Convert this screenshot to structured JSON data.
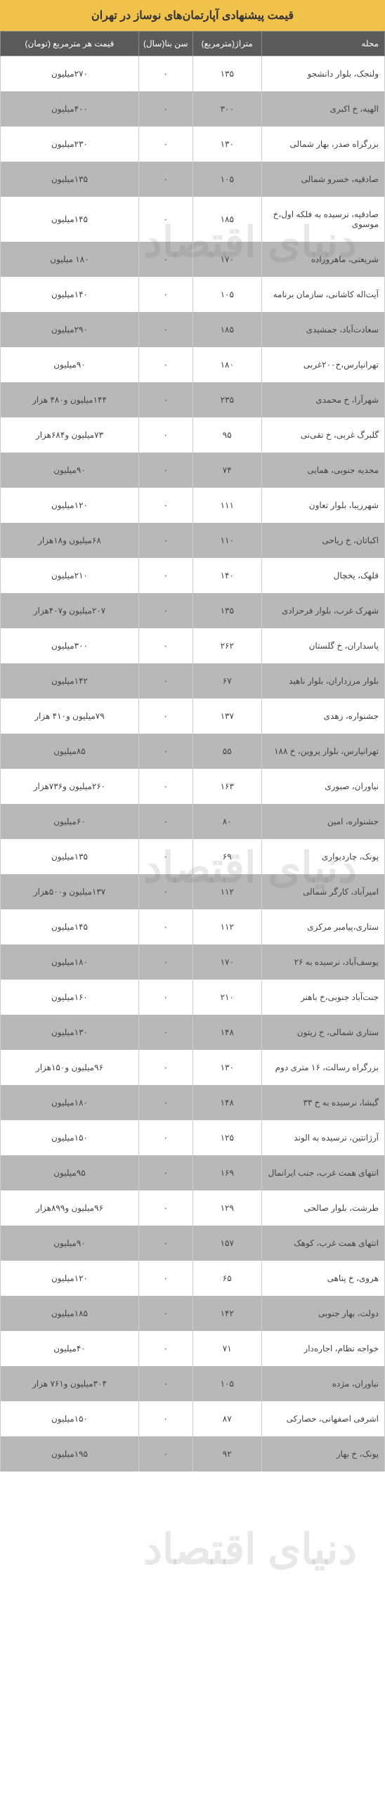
{
  "title": "قیمت پیشنهادی آپارتمان‌های نوساز در تهران",
  "watermark_text": "دنیای اقتصاد",
  "colors": {
    "title_bg": "#f0c14b",
    "header_bg": "#5a5a5a",
    "row_even_bg": "#b8b8b8",
    "row_odd_bg": "#ffffff"
  },
  "columns": [
    "محله",
    "متراژ(مترمربع)",
    "سن بنا(سال)",
    "قیمت هر مترمربع (تومان)"
  ],
  "rows": [
    [
      "ولنجک، بلوار دانشجو",
      "۱۳۵",
      "۰",
      "۲۷۰میلیون"
    ],
    [
      "الهیه، خ اکبری",
      "۳۰۰",
      "۰",
      "۴۰۰میلیون"
    ],
    [
      "بزرگراه صدر، بهار شمالی",
      "۱۳۰",
      "۰",
      "۲۳۰میلیون"
    ],
    [
      "صادقیه، خسرو شمالی",
      "۱۰۵",
      "۰",
      "۱۳۵میلیون"
    ],
    [
      "صادقیه، نرسیده به فلکه اول،خ موسوی",
      "۱۸۵",
      "۰",
      "۱۴۵میلیون"
    ],
    [
      "شریعتی، ماهروزاده",
      "۱۷۰",
      "۰",
      "۱۸۰ میلیون"
    ],
    [
      "آیت‌اله کاشانی، سازمان برنامه",
      "۱۰۵",
      "۰",
      "۱۴۰میلیون"
    ],
    [
      "سعادت‌آباد، جمشیدی",
      "۱۸۵",
      "۰",
      "۲۹۰میلیون"
    ],
    [
      "تهرانپارس،خ۲۰۰غربی",
      "۱۸۰",
      "۰",
      "۹۰میلیون"
    ],
    [
      "شهرآرا، خ محمدی",
      "۲۳۵",
      "۰",
      "۱۴۴میلیون و۴۸۰ هزار"
    ],
    [
      "گلبرگ غربی، خ تقی‌نی",
      "۹۵",
      "۰",
      "۷۳میلیون و۶۸۴هزار"
    ],
    [
      "مجدیه جنوبی، همایی",
      "۷۴",
      "۰",
      "۹۰میلیون"
    ],
    [
      "شهرزیبا، بلوار تعاون",
      "۱۱۱",
      "۰",
      "۱۲۰میلیون"
    ],
    [
      "اکباتان، خ ریاحی",
      "۱۱۰",
      "۰",
      "۶۸میلیون و۱۸هزار"
    ],
    [
      "قلهک، یخچال",
      "۱۴۰",
      "۰",
      "۲۱۰میلیون"
    ],
    [
      "شهرک غرب، بلوار فرحزادی",
      "۱۳۵",
      "۰",
      "۲۰۷میلیون و۴۰۷هزار"
    ],
    [
      "پاسداران، خ گلستان",
      "۲۶۲",
      "۰",
      "۳۰۰میلیون"
    ],
    [
      "بلوار مرزداران، بلوار ناهید",
      "۶۷",
      "۰",
      "۱۴۲میلیون"
    ],
    [
      "جشنواره، زهدی",
      "۱۳۷",
      "۰",
      "۷۹میلیون و۴۱۰ هزار"
    ],
    [
      "تهرانپارس، بلوار پروین، خ ۱۸۸",
      "۵۵",
      "۰",
      "۸۵میلیون"
    ],
    [
      "نیاوران، صبوری",
      "۱۶۳",
      "۰",
      "۲۶۰میلیون و۷۳۶هزار"
    ],
    [
      "جشنواره، امین",
      "۸۰",
      "۰",
      "۶۰میلیون"
    ],
    [
      "پونک، چاردیواری",
      "۶۹",
      "۰",
      "۱۳۵میلیون"
    ],
    [
      "امیرآباد، کارگر شمالی",
      "۱۱۲",
      "۰",
      "۱۳۷میلیون و۵۰۰هزار"
    ],
    [
      "ستاری،پیامبر مرکزی",
      "۱۱۲",
      "۰",
      "۱۴۵میلیون"
    ],
    [
      "یوسف‌آباد، نرسیده به ۲۶",
      "۱۷۰",
      "۰",
      "۱۸۰میلیون"
    ],
    [
      "جنت‌آباد جنوبی،خ باهنر",
      "۲۱۰",
      "۰",
      "۱۶۰میلیون"
    ],
    [
      "ستاری شمالی، خ زیتون",
      "۱۴۸",
      "۰",
      "۱۳۰میلیون"
    ],
    [
      "بزرگراه رسالت، ۱۶ متری دوم",
      "۱۳۰",
      "۰",
      "۹۶میلیون و۱۵۰هزار"
    ],
    [
      "گیشا، نرسیده به خ ۳۳",
      "۱۴۸",
      "۰",
      "۱۸۰میلیون"
    ],
    [
      "آرژانتین، نرسیده به الوند",
      "۱۲۵",
      "۰",
      "۱۵۰میلیون"
    ],
    [
      "انتهای همت غرب، جنب ایرانمال",
      "۱۶۹",
      "۰",
      "۹۵میلیون"
    ],
    [
      "طرشت، بلوار صالحی",
      "۱۲۹",
      "۰",
      "۹۶میلیون و۸۹۹هزار"
    ],
    [
      "انتهای همت غرب، کوهک",
      "۱۵۷",
      "۰",
      "۹۰میلیون"
    ],
    [
      "هروی، خ پناهی",
      "۶۵",
      "۰",
      "۱۲۰میلیون"
    ],
    [
      "دولت، بهار جنوبی",
      "۱۴۲",
      "۰",
      "۱۸۵میلیون"
    ],
    [
      "خواجه نظام، اجاره‌دار",
      "۷۱",
      "۰",
      "۴۰میلیون"
    ],
    [
      "نیاوران، مژده",
      "۱۰۵",
      "۰",
      "۳۰۴میلیون و۷۶۱ هزار"
    ],
    [
      "اشرفی اصفهانی، حصارکی",
      "۸۷",
      "۰",
      "۱۵۰میلیون"
    ],
    [
      "پونک، خ بهار",
      "۹۲",
      "۰",
      "۱۹۵میلیون"
    ]
  ]
}
